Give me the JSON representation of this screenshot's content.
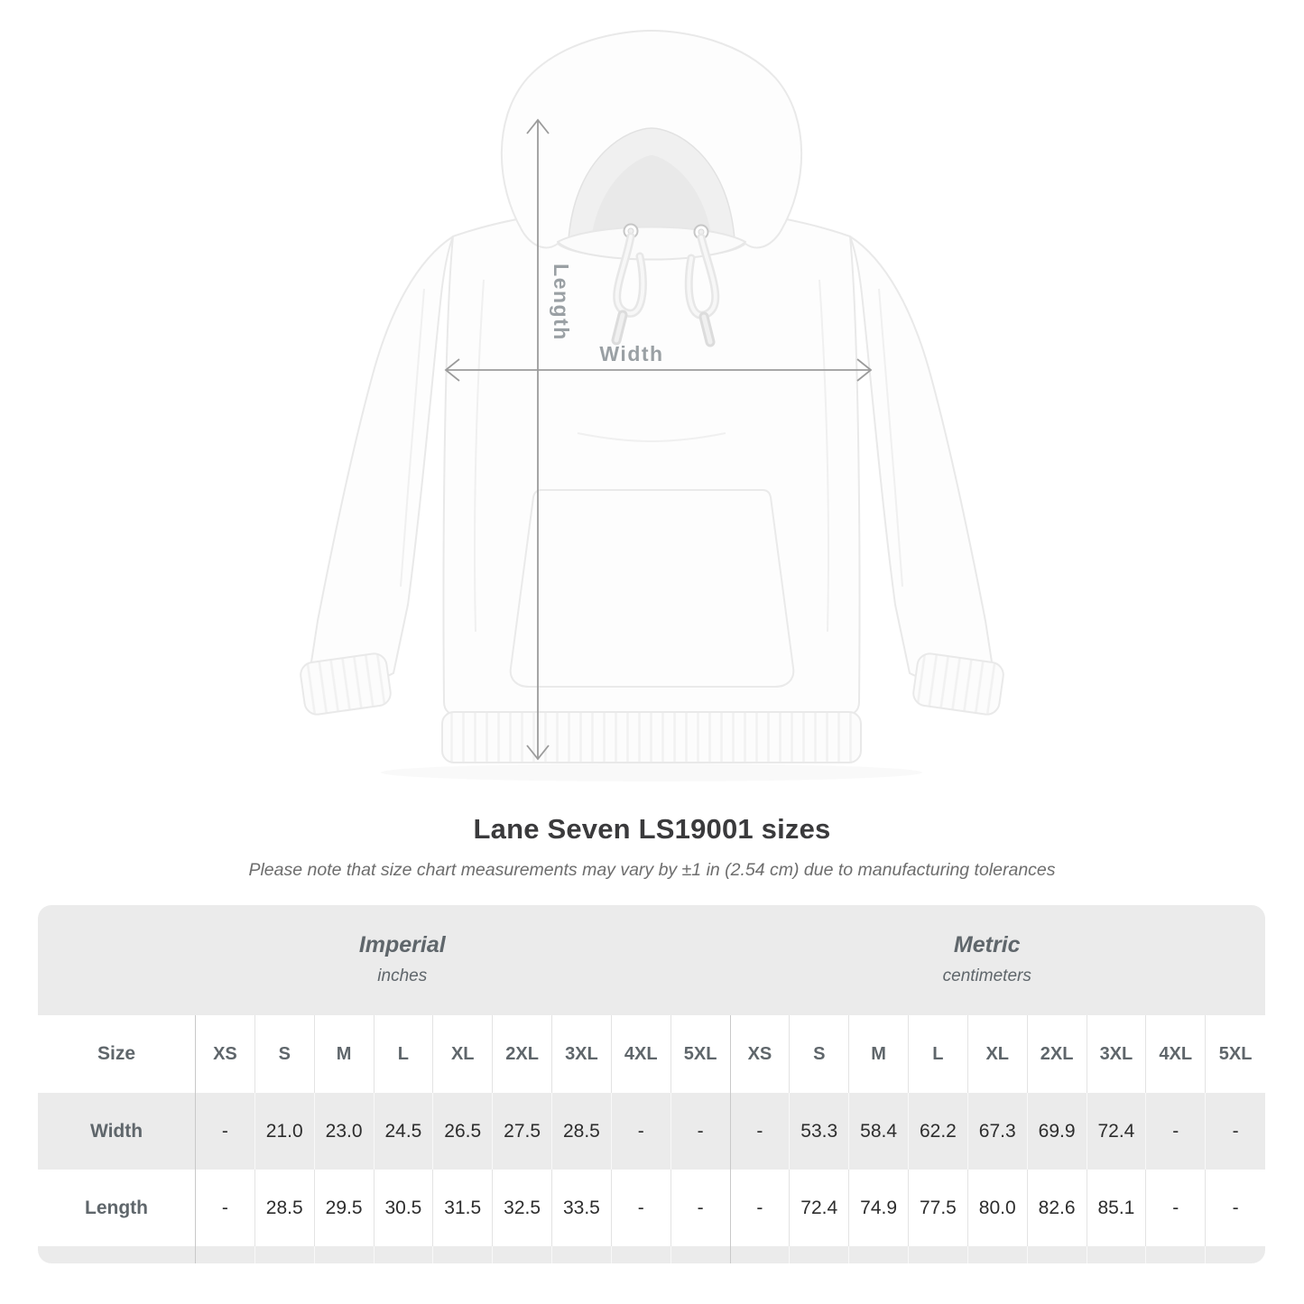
{
  "diagram": {
    "length_label": "Length",
    "width_label": "Width"
  },
  "heading": {
    "title": "Lane Seven LS19001 sizes",
    "note": "Please note that size chart measurements may vary by ±1 in (2.54 cm) due to manufacturing tolerances"
  },
  "table": {
    "imperial": {
      "name": "Imperial",
      "unit": "inches"
    },
    "metric": {
      "name": "Metric",
      "unit": "centimeters"
    },
    "size_col": "Size",
    "sizes": [
      "XS",
      "S",
      "M",
      "L",
      "XL",
      "2XL",
      "3XL",
      "4XL",
      "5XL"
    ],
    "width_row": {
      "label": "Width",
      "imperial": [
        "-",
        "21.0",
        "23.0",
        "24.5",
        "26.5",
        "27.5",
        "28.5",
        "-",
        "-"
      ],
      "metric": [
        "-",
        "53.3",
        "58.4",
        "62.2",
        "67.3",
        "69.9",
        "72.4",
        "-",
        "-"
      ]
    },
    "length_row": {
      "label": "Length",
      "imperial": [
        "-",
        "28.5",
        "29.5",
        "30.5",
        "31.5",
        "32.5",
        "33.5",
        "-",
        "-"
      ],
      "metric": [
        "-",
        "72.4",
        "74.9",
        "77.5",
        "80.0",
        "82.6",
        "85.1",
        "-",
        "-"
      ]
    }
  },
  "chart_data": {
    "type": "table",
    "title": "Lane Seven LS19001 sizes",
    "note": "Please note that size chart measurements may vary by ±1 in (2.54 cm) due to manufacturing tolerances",
    "column_groups": [
      {
        "name": "Imperial",
        "unit": "inches",
        "columns": [
          "XS",
          "S",
          "M",
          "L",
          "XL",
          "2XL",
          "3XL",
          "4XL",
          "5XL"
        ]
      },
      {
        "name": "Metric",
        "unit": "centimeters",
        "columns": [
          "XS",
          "S",
          "M",
          "L",
          "XL",
          "2XL",
          "3XL",
          "4XL",
          "5XL"
        ]
      }
    ],
    "rows": [
      {
        "label": "Width",
        "imperial_inches": [
          null,
          21.0,
          23.0,
          24.5,
          26.5,
          27.5,
          28.5,
          null,
          null
        ],
        "metric_centimeters": [
          null,
          53.3,
          58.4,
          62.2,
          67.3,
          69.9,
          72.4,
          null,
          null
        ]
      },
      {
        "label": "Length",
        "imperial_inches": [
          null,
          28.5,
          29.5,
          30.5,
          31.5,
          32.5,
          33.5,
          null,
          null
        ],
        "metric_centimeters": [
          null,
          72.4,
          74.9,
          77.5,
          80.0,
          82.6,
          85.1,
          null,
          null
        ]
      }
    ],
    "annotations": [
      "Length",
      "Width"
    ]
  },
  "colors": {
    "table_bg": "#ebebeb",
    "divider_strong": "#c9c9c9",
    "divider_light": "#e3e3e3",
    "header_text": "#5f666b",
    "value_text": "#2d2d2d",
    "title_text": "#3a3a3c",
    "note_text": "#6d6d6d",
    "arrow": "#9b9b9b",
    "dim_label": "#9aa0a4"
  }
}
